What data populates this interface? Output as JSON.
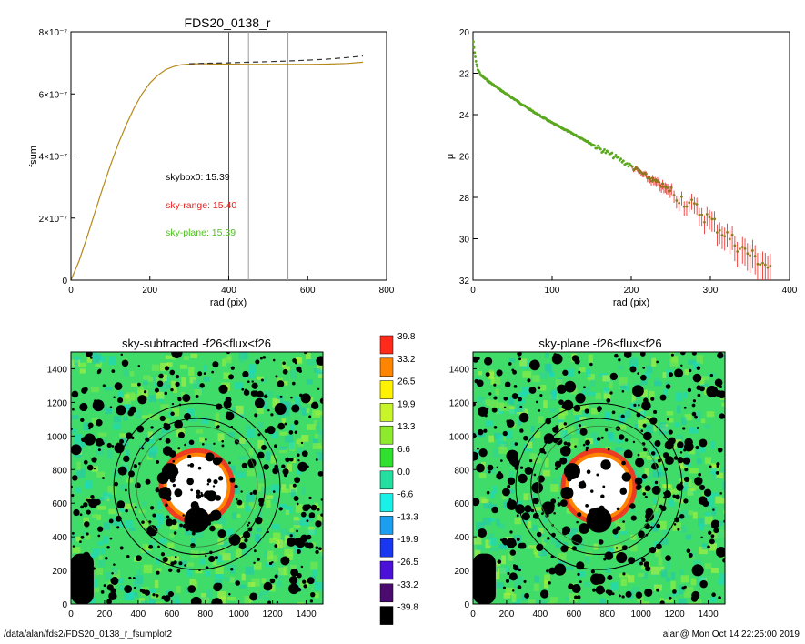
{
  "footer": {
    "path": "/data/alan/fds2/FDS20_0138_r_fsumplot2",
    "stamp": "alan@  Mon Oct 14 22:25:00 2019"
  },
  "chart_data": [
    {
      "type": "line",
      "title": "FDS20_0138_r",
      "xlabel": "rad (pix)",
      "ylabel": "fsum",
      "xlim": [
        0,
        800
      ],
      "ylim": [
        0,
        8e-07
      ],
      "xticks": [
        0,
        200,
        400,
        600,
        800
      ],
      "xtick_labels": [
        "0",
        "200",
        "400",
        "600",
        "800"
      ],
      "yticks": [
        0,
        2e-07,
        4e-07,
        6e-07,
        8e-07
      ],
      "ytick_labels": [
        "0",
        "2×10⁻⁷",
        "4×10⁻⁷",
        "6×10⁻⁷",
        "8×10⁻⁷"
      ],
      "vlines": [
        {
          "x": 400,
          "color": "#e8201e"
        },
        {
          "x": 450,
          "color": "#9a9a9a"
        },
        {
          "x": 550,
          "color": "#9a9a9a"
        }
      ],
      "annotations": [
        {
          "text": "skybox0: 15.39",
          "color": "#000000"
        },
        {
          "text": "sky-range: 15.40",
          "color": "#e8201e"
        },
        {
          "text": "sky-plane: 15.39",
          "color": "#4fc11f"
        }
      ],
      "series": [
        {
          "style": "solid",
          "color": "#b5891a",
          "x": [
            0,
            20,
            40,
            60,
            80,
            100,
            120,
            140,
            160,
            180,
            200,
            220,
            240,
            260,
            280,
            300,
            320,
            340,
            360,
            380,
            400,
            450,
            500,
            550,
            600,
            650,
            700,
            740
          ],
          "y": [
            0,
            6e-08,
            1.35e-07,
            2.15e-07,
            2.95e-07,
            3.7e-07,
            4.4e-07,
            5e-07,
            5.55e-07,
            6e-07,
            6.35e-07,
            6.6e-07,
            6.78e-07,
            6.88e-07,
            6.94e-07,
            6.96e-07,
            6.97e-07,
            6.97e-07,
            6.96e-07,
            6.96e-07,
            6.96e-07,
            6.95e-07,
            6.95e-07,
            6.95e-07,
            6.95e-07,
            6.96e-07,
            6.98e-07,
            7.02e-07
          ]
        },
        {
          "style": "dashed",
          "color": "#333333",
          "x": [
            300,
            350,
            400,
            450,
            500,
            550,
            600,
            650,
            700,
            740
          ],
          "y": [
            6.97e-07,
            6.99e-07,
            7e-07,
            7.02e-07,
            7.04e-07,
            7.06e-07,
            7.09e-07,
            7.12e-07,
            7.17e-07,
            7.22e-07
          ]
        }
      ]
    },
    {
      "type": "scatter",
      "xlabel": "rad (pix)",
      "ylabel": "μ",
      "xlim": [
        0,
        400
      ],
      "ylim": [
        32,
        20
      ],
      "xticks": [
        0,
        100,
        200,
        300,
        400
      ],
      "xtick_labels": [
        "0",
        "100",
        "200",
        "300",
        "400"
      ],
      "yticks": [
        20,
        22,
        24,
        26,
        28,
        30,
        32
      ],
      "ytick_labels": [
        "20",
        "22",
        "24",
        "26",
        "28",
        "30",
        "32"
      ],
      "profile": {
        "x": [
          0,
          2,
          4,
          6,
          10,
          20,
          40,
          60,
          80,
          100,
          120,
          140,
          160,
          180,
          200,
          220,
          240,
          260,
          280,
          300,
          320,
          340,
          360,
          380
        ],
        "y": [
          20.3,
          21.0,
          21.5,
          21.8,
          22.1,
          22.4,
          22.95,
          23.45,
          23.95,
          24.4,
          24.8,
          25.2,
          25.65,
          26.05,
          26.5,
          27.0,
          27.45,
          27.95,
          28.5,
          29.1,
          29.8,
          30.5,
          31.0,
          31.5
        ],
        "color": "#5aa81e",
        "point_color": "#8a7b1e",
        "error_color": "#e8201e"
      }
    },
    {
      "type": "heatmap",
      "title": "sky-subtracted -f26<flux<f26",
      "xlim": [
        0,
        1500
      ],
      "ylim": [
        0,
        1500
      ],
      "xticks": [
        0,
        200,
        400,
        600,
        800,
        1000,
        1200,
        1400
      ],
      "yticks": [
        0,
        200,
        400,
        600,
        800,
        1000,
        1200,
        1400
      ],
      "tick_labels": [
        "0",
        "200",
        "400",
        "600",
        "800",
        "1000",
        "1200",
        "1400"
      ]
    },
    {
      "type": "heatmap",
      "title": "sky-plane -f26<flux<f26",
      "xlim": [
        0,
        1500
      ],
      "ylim": [
        0,
        1500
      ],
      "xticks": [
        0,
        200,
        400,
        600,
        800,
        1000,
        1200,
        1400
      ],
      "yticks": [
        0,
        200,
        400,
        600,
        800,
        1000,
        1200,
        1400
      ],
      "tick_labels": [
        "0",
        "200",
        "400",
        "600",
        "800",
        "1000",
        "1200",
        "1400"
      ]
    },
    {
      "type": "colorbar",
      "labels": [
        "39.8",
        "33.2",
        "26.5",
        "19.9",
        "13.3",
        "6.6",
        "0.0",
        "-6.6",
        "-13.3",
        "-19.9",
        "-26.5",
        "-33.2",
        "-39.8"
      ],
      "colors": [
        "#ff2a1a",
        "#ff8400",
        "#fff200",
        "#c8f52a",
        "#8eea2c",
        "#2fe02e",
        "#23e0a0",
        "#19f0e8",
        "#1c9ef0",
        "#1936f0",
        "#4a10d8",
        "#4a0a6e",
        "#000000"
      ]
    }
  ]
}
